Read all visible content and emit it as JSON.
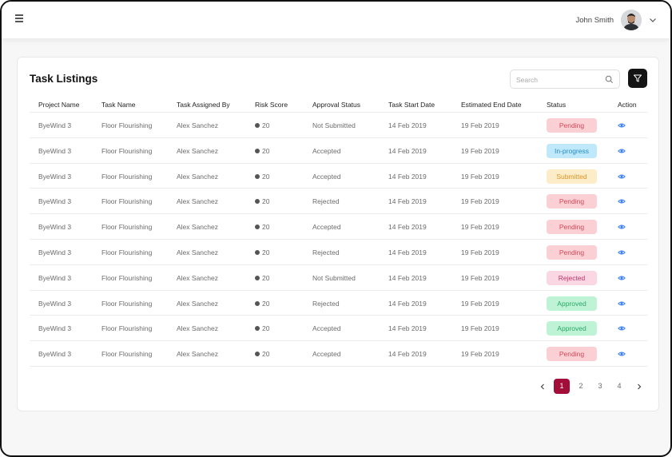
{
  "header": {
    "menu_icon": "hamburger-menu-icon",
    "user_name": "John Smith",
    "avatar_icon": "avatar",
    "dropdown_icon": "chevron-down-icon"
  },
  "card": {
    "title": "Task Listings",
    "search": {
      "placeholder": "Search",
      "value": "",
      "icon": "search-icon"
    },
    "filter_icon": "filter-icon"
  },
  "table": {
    "columns": [
      "Project Name",
      "Task Name",
      "Task Assigned By",
      "Risk Score",
      "Approval Status",
      "Task Start Date",
      "Estimated End Date",
      "Status",
      "Action"
    ],
    "rows": [
      {
        "project": "ByeWind 3",
        "task": "Floor Flourishing",
        "assigned_by": "Alex Sanchez",
        "risk": "20",
        "approval": "Not Submitted",
        "start": "14 Feb 2019",
        "end": "19 Feb 2019",
        "status": "Pending",
        "status_key": "pending"
      },
      {
        "project": "ByeWind 3",
        "task": "Floor Flourishing",
        "assigned_by": "Alex Sanchez",
        "risk": "20",
        "approval": "Accepted",
        "start": "14 Feb 2019",
        "end": "19 Feb 2019",
        "status": "In-progress",
        "status_key": "inprogress"
      },
      {
        "project": "ByeWind 3",
        "task": "Floor Flourishing",
        "assigned_by": "Alex Sanchez",
        "risk": "20",
        "approval": "Accepted",
        "start": "14 Feb 2019",
        "end": "19 Feb 2019",
        "status": "Submitted",
        "status_key": "submitted"
      },
      {
        "project": "ByeWind 3",
        "task": "Floor Flourishing",
        "assigned_by": "Alex Sanchez",
        "risk": "20",
        "approval": "Rejected",
        "start": "14 Feb 2019",
        "end": "19 Feb 2019",
        "status": "Pending",
        "status_key": "pending"
      },
      {
        "project": "ByeWind 3",
        "task": "Floor Flourishing",
        "assigned_by": "Alex Sanchez",
        "risk": "20",
        "approval": "Accepted",
        "start": "14 Feb 2019",
        "end": "19 Feb 2019",
        "status": "Pending",
        "status_key": "pending"
      },
      {
        "project": "ByeWind 3",
        "task": "Floor Flourishing",
        "assigned_by": "Alex Sanchez",
        "risk": "20",
        "approval": "Rejected",
        "start": "14 Feb 2019",
        "end": "19 Feb 2019",
        "status": "Pending",
        "status_key": "pending"
      },
      {
        "project": "ByeWind 3",
        "task": "Floor Flourishing",
        "assigned_by": "Alex Sanchez",
        "risk": "20",
        "approval": "Not Submitted",
        "start": "14 Feb 2019",
        "end": "19 Feb 2019",
        "status": "Rejected",
        "status_key": "rejected"
      },
      {
        "project": "ByeWind 3",
        "task": "Floor Flourishing",
        "assigned_by": "Alex Sanchez",
        "risk": "20",
        "approval": "Rejected",
        "start": "14 Feb 2019",
        "end": "19 Feb 2019",
        "status": "Approved",
        "status_key": "approved"
      },
      {
        "project": "ByeWind 3",
        "task": "Floor Flourishing",
        "assigned_by": "Alex Sanchez",
        "risk": "20",
        "approval": "Accepted",
        "start": "14 Feb 2019",
        "end": "19 Feb 2019",
        "status": "Approved",
        "status_key": "approved"
      },
      {
        "project": "ByeWind 3",
        "task": "Floor Flourishing",
        "assigned_by": "Alex Sanchez",
        "risk": "20",
        "approval": "Accepted",
        "start": "14 Feb 2019",
        "end": "19 Feb 2019",
        "status": "Pending",
        "status_key": "pending"
      }
    ],
    "action_icon": "eye-icon"
  },
  "status_colors": {
    "pending": {
      "bg": "#fbd0d4",
      "fg": "#d4485a"
    },
    "inprogress": {
      "bg": "#bfe8fb",
      "fg": "#2a8ec4"
    },
    "submitted": {
      "bg": "#fdecc8",
      "fg": "#e0952a"
    },
    "rejected": {
      "bg": "#fbd7e4",
      "fg": "#c23567"
    },
    "approved": {
      "bg": "#bff3d6",
      "fg": "#2aa866"
    }
  },
  "pagination": {
    "prev_icon": "chevron-left-icon",
    "next_icon": "chevron-right-icon",
    "pages": [
      "1",
      "2",
      "3",
      "4"
    ],
    "current": "1"
  },
  "colors": {
    "accent": "#a30d3a",
    "action_icon": "#3b82f6",
    "filter_button": "#141414"
  }
}
